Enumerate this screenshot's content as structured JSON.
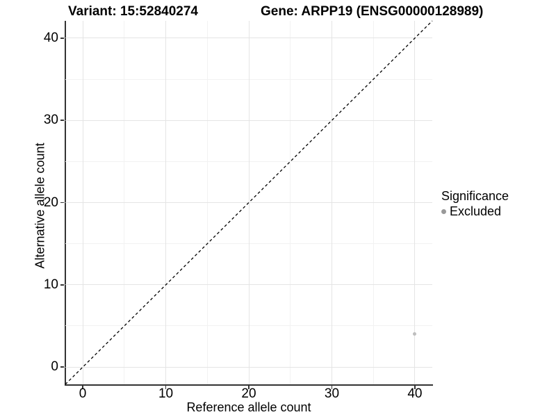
{
  "titles": {
    "variant": "Variant: 15:52840274",
    "gene": "Gene: ARPP19 (ENSG00000128989)"
  },
  "chart_data": {
    "type": "scatter",
    "title": "Variant: 15:52840274    Gene: ARPP19 (ENSG00000128989)",
    "xlabel": "Reference allele count",
    "ylabel": "Alternative allele count",
    "xlim": [
      -2.1,
      42.1
    ],
    "ylim": [
      -2.1,
      42.1
    ],
    "x_ticks": [
      0,
      10,
      20,
      30,
      40
    ],
    "y_ticks": [
      0,
      10,
      20,
      30,
      40
    ],
    "x_minor_ticks": [
      5,
      15,
      25,
      35
    ],
    "y_minor_ticks": [
      5,
      15,
      25,
      35
    ],
    "grid": "on",
    "abline": {
      "slope": 1,
      "intercept": 0,
      "style": "dashed",
      "color": "#000000"
    },
    "series": [
      {
        "name": "Excluded",
        "point_color": "#bebebe",
        "points": [
          {
            "x": 40,
            "y": 4
          }
        ]
      }
    ],
    "legend": {
      "position": "right",
      "title": "Significance",
      "items": [
        {
          "label": "Excluded",
          "color": "#999999"
        }
      ]
    }
  },
  "colors": {
    "background": "#ffffff",
    "grid_major": "#e4e4e4",
    "grid_minor": "#f2f2f2",
    "axis_line": "#333333",
    "text": "#000000",
    "point": "#bebebe",
    "legend_key": "#999999",
    "abline": "#000000"
  }
}
